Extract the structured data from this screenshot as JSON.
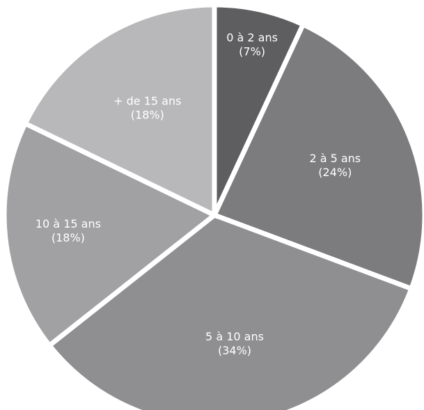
{
  "chart_data": {
    "type": "pie",
    "title": "",
    "slices": [
      {
        "label": "0 à 2 ans",
        "percent_label": "(7%)",
        "value": 7,
        "color": "#5e5e60"
      },
      {
        "label": "2 à 5 ans",
        "percent_label": "(24%)",
        "value": 24,
        "color": "#7c7c7f"
      },
      {
        "label": "5 à 10 ans",
        "percent_label": "(34%)",
        "value": 34,
        "color": "#8f8f92"
      },
      {
        "label": "10 à 15 ans",
        "percent_label": "(18%)",
        "value": 18,
        "color": "#a1a1a4"
      },
      {
        "label": "+ de 15 ans",
        "percent_label": "(18%)",
        "value": 18,
        "color": "#b8b8ba"
      }
    ],
    "start_angle_deg": 0,
    "direction": "clockwise",
    "legend": "none",
    "labels_inside_slices": true
  }
}
